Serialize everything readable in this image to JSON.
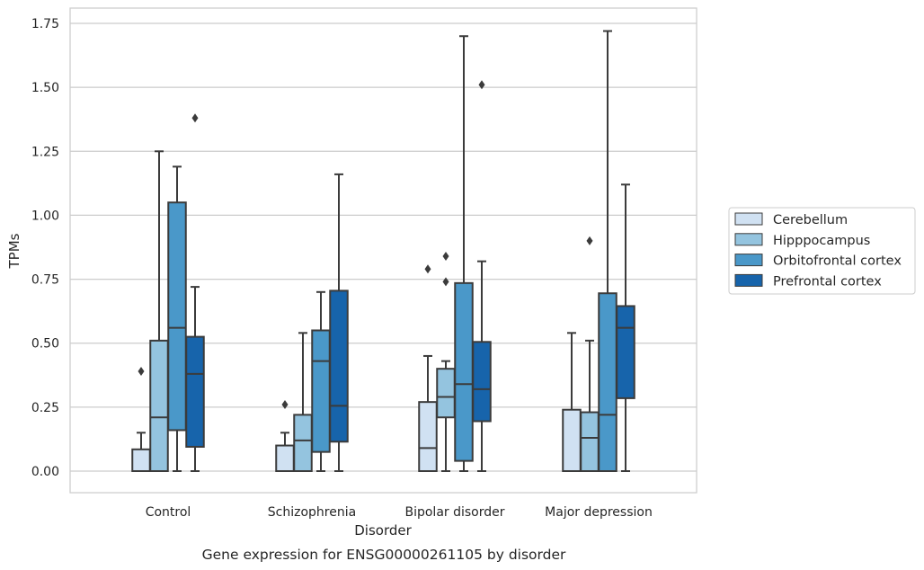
{
  "chart_data": {
    "type": "box",
    "title": "",
    "caption": "Gene expression for ENSG00000261105 by disorder",
    "xlabel": "Disorder",
    "ylabel": "TPMs",
    "ylim": [
      -0.08,
      1.81
    ],
    "yticks": [
      "0.00",
      "0.25",
      "0.50",
      "0.75",
      "1.00",
      "1.25",
      "1.50",
      "1.75"
    ],
    "ytick_values": [
      0,
      0.25,
      0.5,
      0.75,
      1.0,
      1.25,
      1.5,
      1.75
    ],
    "grid": true,
    "legend_position": "right",
    "categories": [
      "Control",
      "Schizophrenia",
      "Bipolar disorder",
      "Major depression"
    ],
    "series": [
      {
        "name": "Cerebellum",
        "color": "#d0e1f2",
        "boxes": [
          {
            "whisker_low": 0,
            "q1": 0,
            "median": 0,
            "q3": 0.085,
            "whisker_high": 0.15,
            "outliers": [
              0.39
            ]
          },
          {
            "whisker_low": 0,
            "q1": 0,
            "median": 0,
            "q3": 0.1,
            "whisker_high": 0.15,
            "outliers": [
              0.26
            ]
          },
          {
            "whisker_low": 0,
            "q1": 0,
            "median": 0.09,
            "q3": 0.27,
            "whisker_high": 0.45,
            "outliers": [
              0.79
            ]
          },
          {
            "whisker_low": 0,
            "q1": 0,
            "median": 0,
            "q3": 0.24,
            "whisker_high": 0.54,
            "outliers": []
          }
        ]
      },
      {
        "name": "Hipppocampus",
        "color": "#94c4df",
        "boxes": [
          {
            "whisker_low": 0,
            "q1": 0,
            "median": 0.21,
            "q3": 0.51,
            "whisker_high": 1.25,
            "outliers": []
          },
          {
            "whisker_low": 0,
            "q1": 0,
            "median": 0.12,
            "q3": 0.22,
            "whisker_high": 0.54,
            "outliers": []
          },
          {
            "whisker_low": 0,
            "q1": 0.21,
            "median": 0.29,
            "q3": 0.4,
            "whisker_high": 0.43,
            "outliers": [
              0.74,
              0.84
            ]
          },
          {
            "whisker_low": 0,
            "q1": 0,
            "median": 0.13,
            "q3": 0.23,
            "whisker_high": 0.51,
            "outliers": [
              0.9
            ]
          }
        ]
      },
      {
        "name": "Orbitofrontal cortex",
        "color": "#4a98c9",
        "boxes": [
          {
            "whisker_low": 0,
            "q1": 0.16,
            "median": 0.56,
            "q3": 1.05,
            "whisker_high": 1.19,
            "outliers": []
          },
          {
            "whisker_low": 0,
            "q1": 0.075,
            "median": 0.43,
            "q3": 0.55,
            "whisker_high": 0.7,
            "outliers": []
          },
          {
            "whisker_low": 0,
            "q1": 0.04,
            "median": 0.34,
            "q3": 0.735,
            "whisker_high": 1.7,
            "outliers": []
          },
          {
            "whisker_low": 0,
            "q1": 0,
            "median": 0.22,
            "q3": 0.695,
            "whisker_high": 1.72,
            "outliers": []
          }
        ]
      },
      {
        "name": "Prefrontal cortex",
        "color": "#1764ab",
        "boxes": [
          {
            "whisker_low": 0,
            "q1": 0.095,
            "median": 0.38,
            "q3": 0.525,
            "whisker_high": 0.72,
            "outliers": [
              1.38
            ]
          },
          {
            "whisker_low": 0,
            "q1": 0.115,
            "median": 0.255,
            "q3": 0.705,
            "whisker_high": 1.16,
            "outliers": []
          },
          {
            "whisker_low": 0,
            "q1": 0.195,
            "median": 0.32,
            "q3": 0.505,
            "whisker_high": 0.82,
            "outliers": [
              1.51
            ]
          },
          {
            "whisker_low": 0,
            "q1": 0.285,
            "median": 0.56,
            "q3": 0.645,
            "whisker_high": 1.12,
            "outliers": []
          }
        ]
      }
    ]
  }
}
